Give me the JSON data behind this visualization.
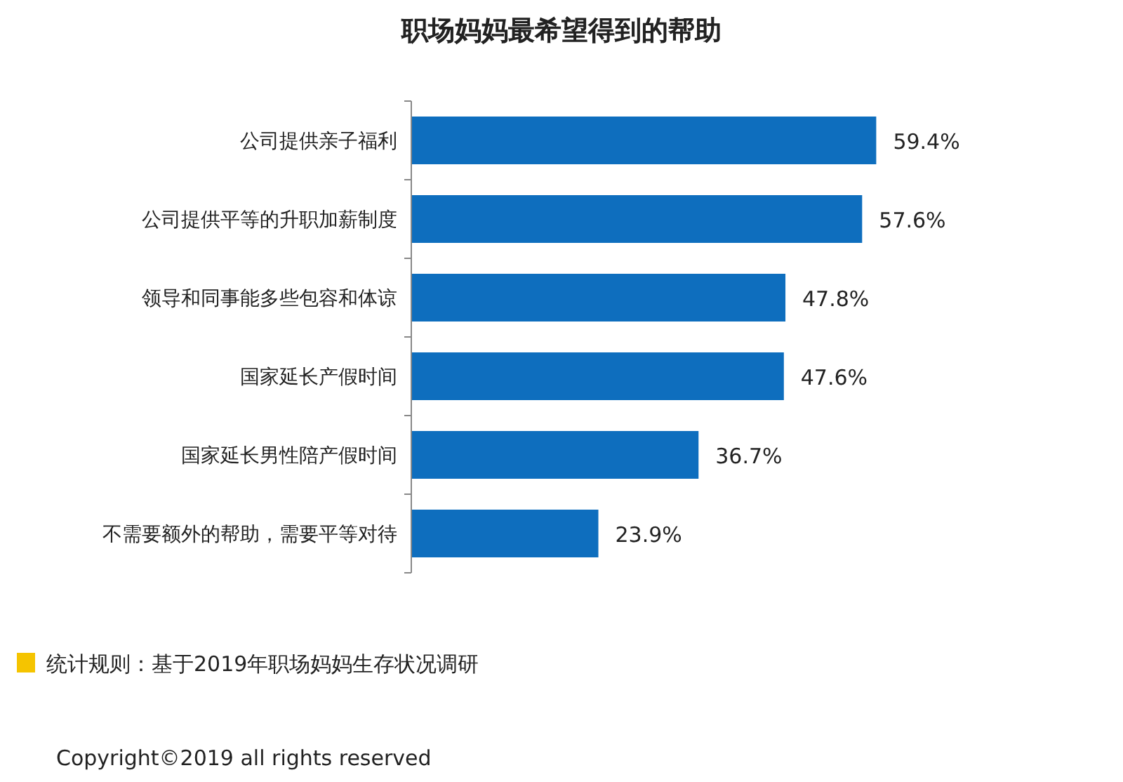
{
  "chart_data": {
    "type": "bar",
    "orientation": "horizontal",
    "title": "职场妈妈最希望得到的帮助",
    "categories": [
      "公司提供亲子福利",
      "公司提供平等的升职加薪制度",
      "领导和同事能多些包容和体谅",
      "国家延长产假时间",
      "国家延长男性陪产假时间",
      "不需要额外的帮助，需要平等对待"
    ],
    "values": [
      59.4,
      57.6,
      47.8,
      47.6,
      36.7,
      23.9
    ],
    "value_labels": [
      "59.4%",
      "57.6%",
      "47.8%",
      "47.6%",
      "36.7%",
      "23.9%"
    ],
    "color": "#0e6ebe",
    "annotations": [
      "统计规则：基于2019年职场妈妈生存状况调研",
      "Copyright©2019 all rights reserved"
    ]
  }
}
